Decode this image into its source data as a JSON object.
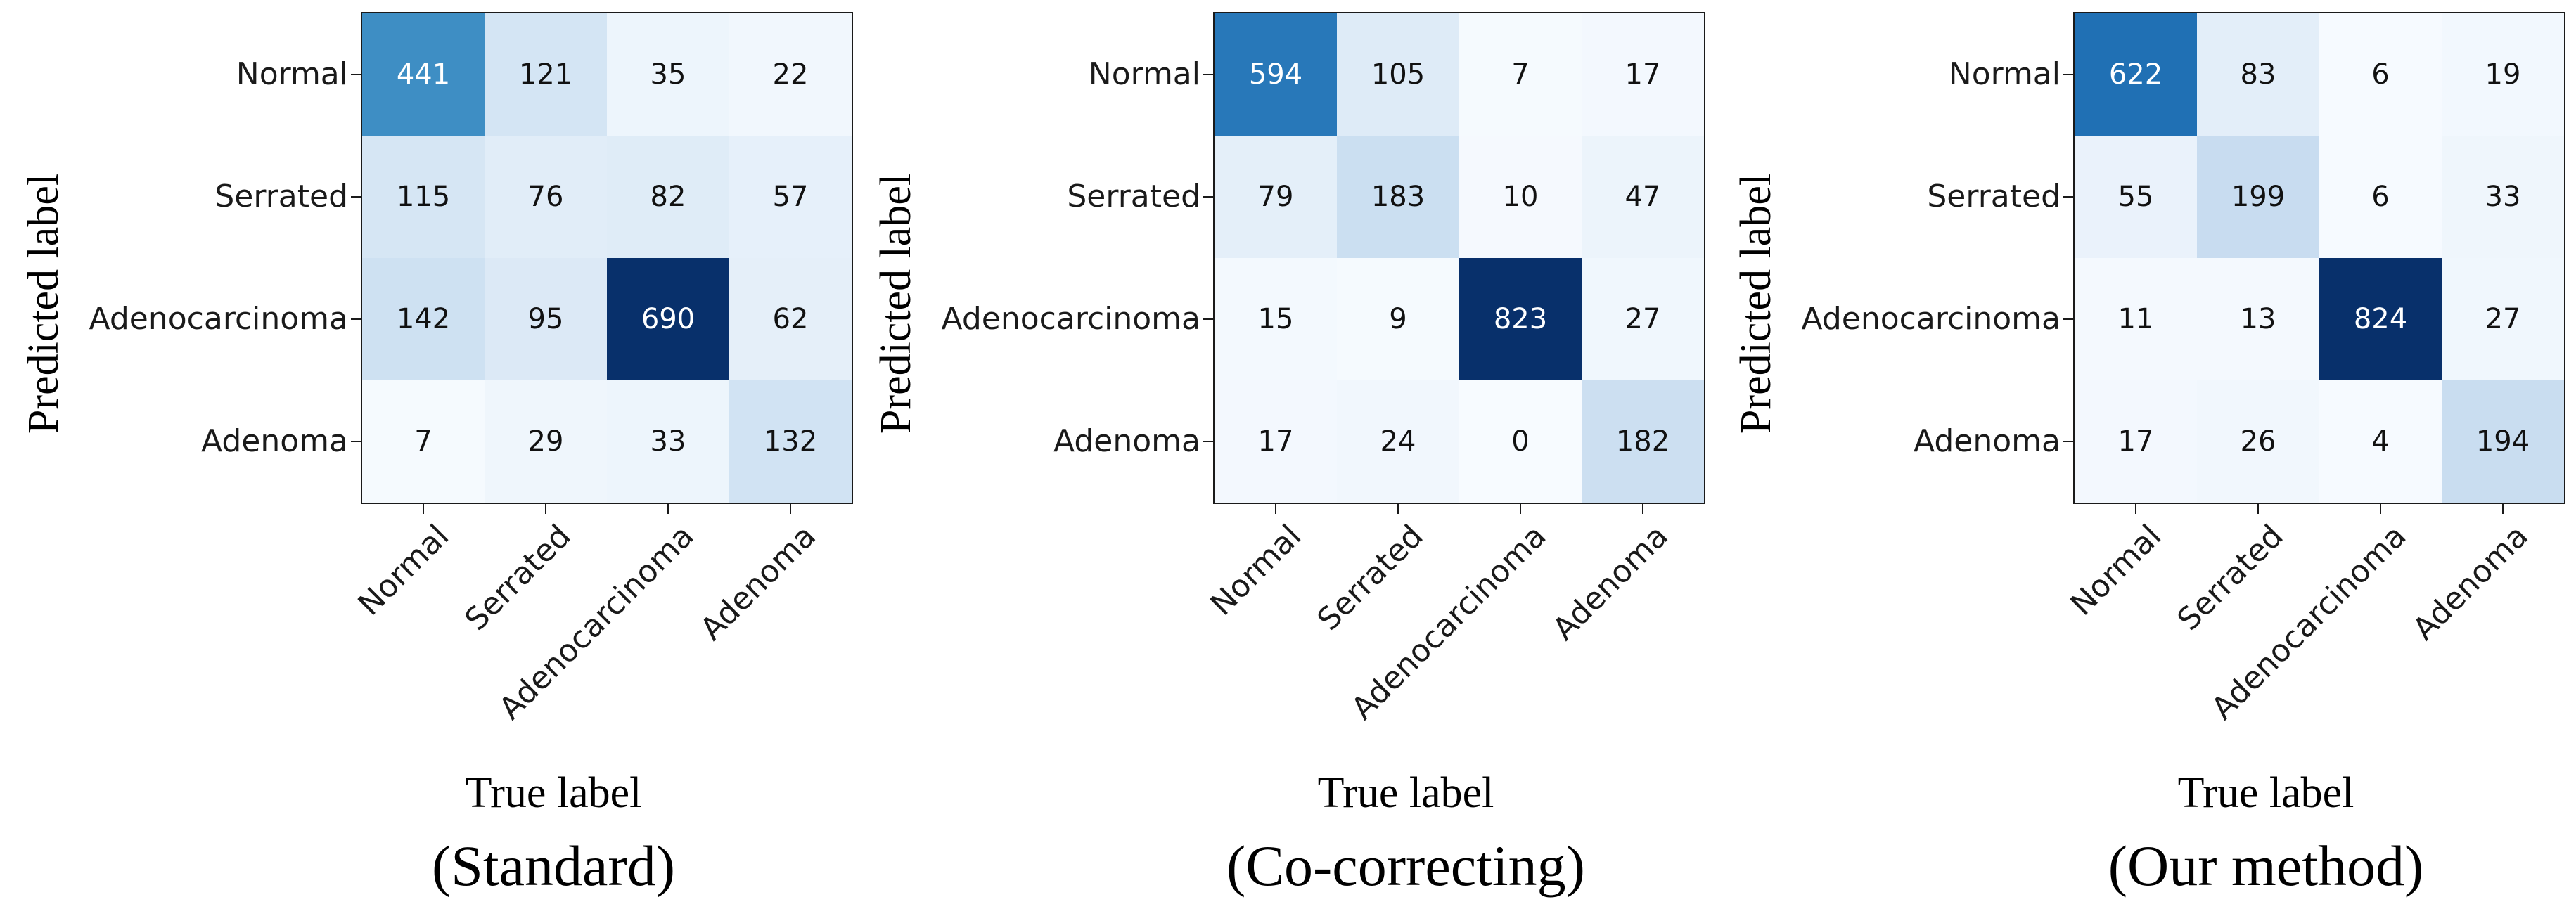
{
  "chart_data": [
    {
      "type": "heatmap",
      "title": "(Standard)",
      "xlabel": "True label",
      "ylabel": "Predicted label",
      "x_categories": [
        "Normal",
        "Serrated",
        "Adenocarcinoma",
        "Adenoma"
      ],
      "y_categories": [
        "Normal",
        "Serrated",
        "Adenocarcinoma",
        "Adenoma"
      ],
      "values": [
        [
          441,
          121,
          35,
          22
        ],
        [
          115,
          76,
          82,
          57
        ],
        [
          142,
          95,
          690,
          62
        ],
        [
          7,
          29,
          33,
          132
        ]
      ],
      "vmin": 0
    },
    {
      "type": "heatmap",
      "title": "(Co-correcting)",
      "xlabel": "True label",
      "ylabel": "Predicted label",
      "x_categories": [
        "Normal",
        "Serrated",
        "Adenocarcinoma",
        "Adenoma"
      ],
      "y_categories": [
        "Normal",
        "Serrated",
        "Adenocarcinoma",
        "Adenoma"
      ],
      "values": [
        [
          594,
          105,
          7,
          17
        ],
        [
          79,
          183,
          10,
          47
        ],
        [
          15,
          9,
          823,
          27
        ],
        [
          17,
          24,
          0,
          182
        ]
      ],
      "vmin": 0
    },
    {
      "type": "heatmap",
      "title": "(Our method)",
      "xlabel": "True label",
      "ylabel": "Predicted label",
      "x_categories": [
        "Normal",
        "Serrated",
        "Adenocarcinoma",
        "Adenoma"
      ],
      "y_categories": [
        "Normal",
        "Serrated",
        "Adenocarcinoma",
        "Adenoma"
      ],
      "values": [
        [
          622,
          83,
          6,
          19
        ],
        [
          55,
          199,
          6,
          33
        ],
        [
          11,
          13,
          824,
          27
        ],
        [
          17,
          26,
          4,
          194
        ]
      ],
      "vmin": 0
    }
  ],
  "colors": {
    "background": "#ffffff",
    "spine": "#1a1a1a",
    "tick": "#1a1a1a",
    "label_text": "#000000",
    "cell_text_dark": "#111111",
    "cell_text_light": "#ffffff",
    "colormap_name": "Blues",
    "blues_stops": [
      [
        247,
        251,
        255
      ],
      [
        222,
        235,
        247
      ],
      [
        198,
        219,
        239
      ],
      [
        158,
        202,
        225
      ],
      [
        107,
        174,
        214
      ],
      [
        66,
        146,
        198
      ],
      [
        33,
        113,
        181
      ],
      [
        8,
        81,
        156
      ],
      [
        8,
        48,
        107
      ]
    ]
  }
}
